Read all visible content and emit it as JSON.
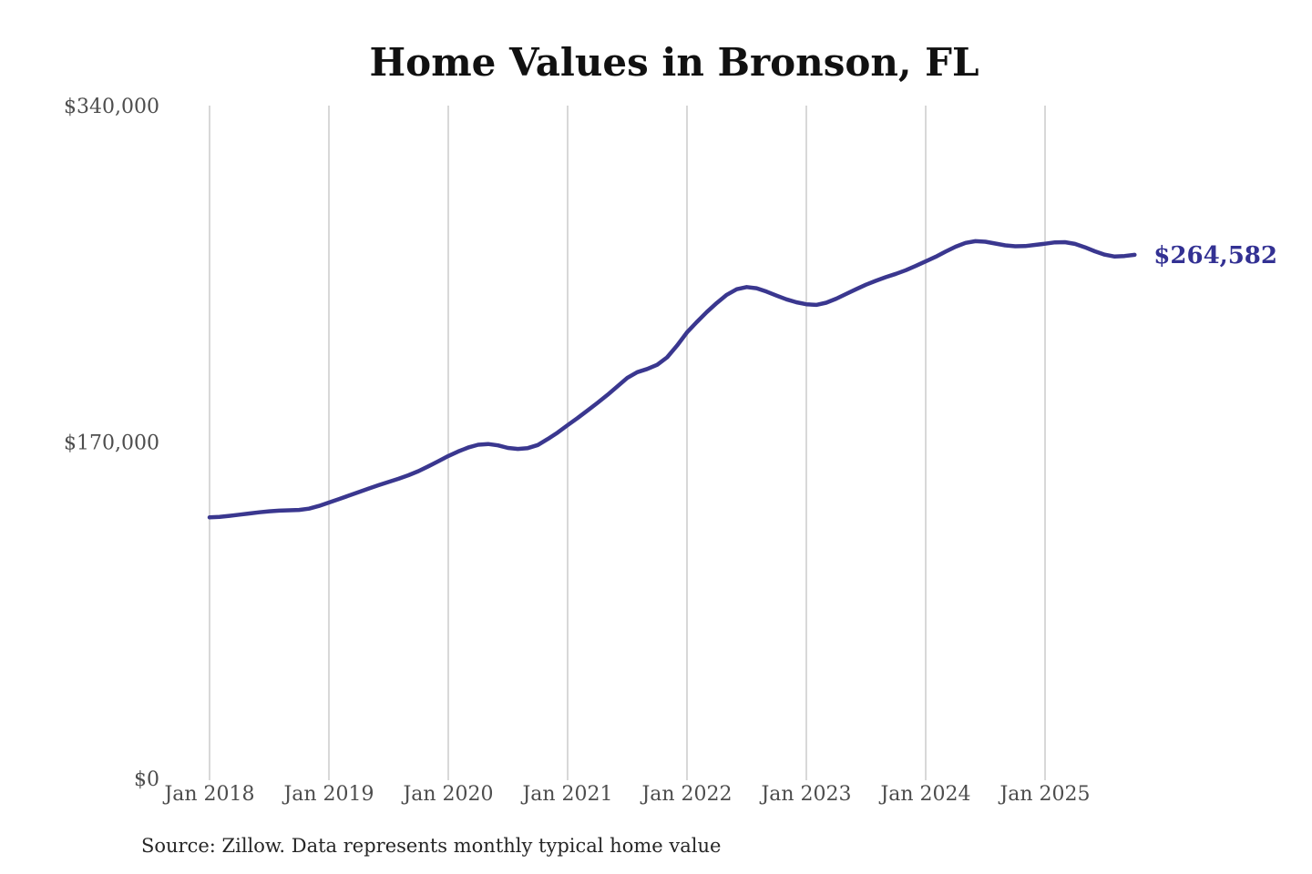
{
  "page": {
    "background": "#ffffff"
  },
  "chart_data": {
    "type": "line",
    "title": "Home Values in Bronson, FL",
    "source_note": "Source: Zillow. Data represents monthly typical home value",
    "end_label": "$264,582",
    "final_value": 264582,
    "legend": "none",
    "grid": "vertical year gridlines only",
    "xlabel": "",
    "ylabel": "",
    "ylim": [
      0,
      340000
    ],
    "y_ticks": [
      {
        "value": 340000,
        "label": "$340,000"
      },
      {
        "value": 170000,
        "label": "$170,000"
      },
      {
        "value": 0,
        "label": "$0"
      }
    ],
    "x_tick_labels": [
      "Jan 2018",
      "Jan 2019",
      "Jan 2020",
      "Jan 2021",
      "Jan 2022",
      "Jan 2023",
      "Jan 2024",
      "Jan 2025"
    ],
    "series": [
      {
        "name": "Monthly typical home value",
        "start_month": "2018-01",
        "end_month": "2025-10",
        "frequency": "monthly",
        "values": [
          131900,
          132200,
          132700,
          133300,
          133900,
          134500,
          135000,
          135300,
          135500,
          135700,
          136300,
          137700,
          139400,
          141100,
          142900,
          144700,
          146500,
          148200,
          149800,
          151400,
          153200,
          155300,
          157700,
          160300,
          162900,
          165200,
          167200,
          168600,
          169000,
          168300,
          167000,
          166500,
          166900,
          168500,
          171500,
          174800,
          178500,
          182100,
          185900,
          189800,
          193800,
          198100,
          202400,
          205300,
          206900,
          209000,
          212800,
          218700,
          225400,
          230700,
          235700,
          240300,
          244400,
          247200,
          248300,
          247700,
          246000,
          244000,
          242100,
          240600,
          239600,
          239300,
          240400,
          242400,
          244800,
          247200,
          249500,
          251500,
          253300,
          255000,
          256800,
          259000,
          261300,
          263600,
          266200,
          268700,
          270600,
          271500,
          271200,
          270300,
          269400,
          268900,
          269000,
          269600,
          270200,
          270900,
          271000,
          270100,
          268400,
          266400,
          264700,
          263700,
          264000,
          264582
        ]
      }
    ],
    "colors": {
      "line": "#3a378f",
      "end_label": "#333193",
      "title": "#111111",
      "axis_labels": "#4d4d4d",
      "gridline": "#cccccc",
      "source": "#262626"
    }
  }
}
